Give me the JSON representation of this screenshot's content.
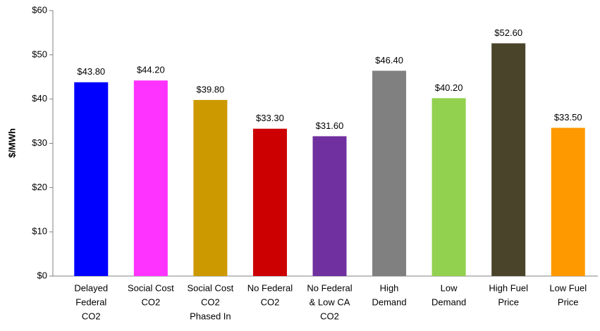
{
  "chart_data": {
    "type": "bar",
    "ylabel": "$/MWh",
    "categories": [
      [
        "Delayed",
        "Federal",
        "CO2"
      ],
      [
        "Social Cost",
        "CO2"
      ],
      [
        "Social Cost",
        "CO2",
        "Phased In"
      ],
      [
        "No Federal",
        "CO2"
      ],
      [
        "No Federal",
        "& Low CA",
        "CO2"
      ],
      [
        "High",
        "Demand"
      ],
      [
        "Low",
        "Demand"
      ],
      [
        "High Fuel",
        "Price"
      ],
      [
        "Low Fuel",
        "Price"
      ]
    ],
    "values": [
      43.8,
      44.2,
      39.8,
      33.3,
      31.6,
      46.4,
      40.2,
      52.6,
      33.5
    ],
    "value_labels": [
      "$43.80",
      "$44.20",
      "$39.80",
      "$33.30",
      "$31.60",
      "$46.40",
      "$40.20",
      "$52.60",
      "$33.50"
    ],
    "colors": [
      "#0000ff",
      "#ff33ff",
      "#cc9900",
      "#cc0000",
      "#7030a0",
      "#808080",
      "#92d050",
      "#4a442a",
      "#ff9900"
    ],
    "ylim": [
      0,
      60
    ],
    "yticks": [
      {
        "value": 0,
        "label": "$0"
      },
      {
        "value": 10,
        "label": "$10"
      },
      {
        "value": 20,
        "label": "$20"
      },
      {
        "value": 30,
        "label": "$30"
      },
      {
        "value": 40,
        "label": "$40"
      },
      {
        "value": 50,
        "label": "$50"
      },
      {
        "value": 60,
        "label": "$60"
      }
    ],
    "grid": false
  }
}
